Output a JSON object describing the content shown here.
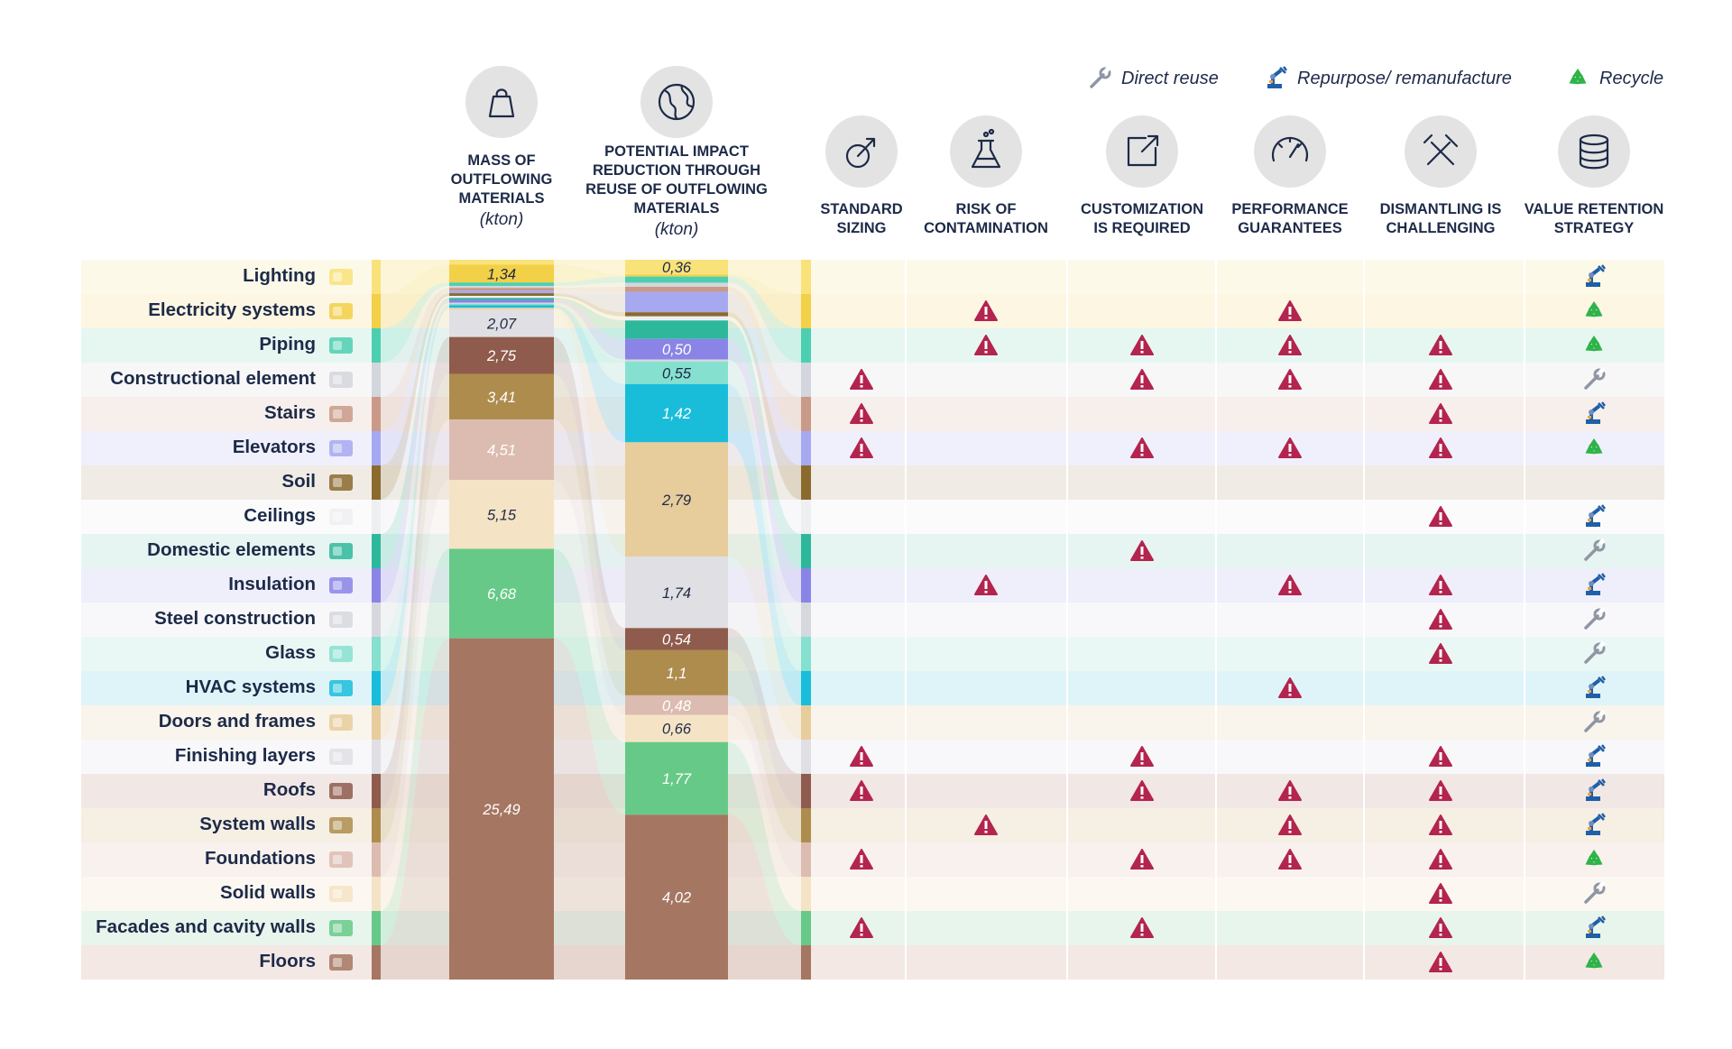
{
  "legend": [
    {
      "icon": "wrench-icon",
      "label": "Direct reuse"
    },
    {
      "icon": "robot-arm-icon",
      "label": "Repurpose/ remanufacture"
    },
    {
      "icon": "recycle-icon",
      "label": "Recycle"
    }
  ],
  "columns": {
    "mass": {
      "title_lines": [
        "MASS OF",
        "OUTFLOWING",
        "MATERIALS"
      ],
      "unit": "(kton)",
      "icon": "weight-icon"
    },
    "impact": {
      "title_lines": [
        "POTENTIAL IMPACT",
        "REDUCTION THROUGH",
        "REUSE OF OUTFLOWING",
        "MATERIALS"
      ],
      "unit": "(kton)",
      "icon": "globe-icon"
    },
    "criteria": [
      {
        "key": "standard_sizing",
        "title_lines": [
          "STANDARD",
          "SIZING"
        ],
        "icon": "resize-icon"
      },
      {
        "key": "risk_of_contamination",
        "title_lines": [
          "RISK OF",
          "CONTAMINATION"
        ],
        "icon": "flask-icon"
      },
      {
        "key": "customization_required",
        "title_lines": [
          "CUSTOMIZATION",
          "IS REQUIRED"
        ],
        "icon": "external-link-icon"
      },
      {
        "key": "performance_guarantees",
        "title_lines": [
          "PERFORMANCE",
          "GUARANTEES"
        ],
        "icon": "gauge-icon"
      },
      {
        "key": "dismantling_challenging",
        "title_lines": [
          "DISMANTLING IS",
          "CHALLENGING"
        ],
        "icon": "tools-icon"
      },
      {
        "key": "value_retention_strategy",
        "title_lines": [
          "VALUE RETENTION",
          "STRATEGY"
        ],
        "icon": "database-icon"
      }
    ]
  },
  "colors": {
    "warning": "#b3244e",
    "strategy_blue": "#1f5fa8",
    "recycle_green": "#2fb34a",
    "wrench_gray": "#8e96a3"
  },
  "chart_data": {
    "type": "table",
    "rows": [
      {
        "name": "Lighting",
        "icon": "lightbulb-icon",
        "color": "#f9e27a",
        "tint": "#fdf9e9",
        "mass": 0.36,
        "mass_label": "",
        "impact": 0.36,
        "impact_label": "0,36",
        "flags": [
          0,
          0,
          0,
          0,
          0
        ],
        "strategy": "repurpose"
      },
      {
        "name": "Electricity systems",
        "icon": "electric-box-icon",
        "color": "#f2d047",
        "tint": "#fdf6e3",
        "mass": 1.34,
        "mass_label": "1,34",
        "impact": 0.05,
        "impact_label": "",
        "flags": [
          0,
          1,
          0,
          1,
          0
        ],
        "strategy": "recycle"
      },
      {
        "name": "Piping",
        "icon": "pipe-icon",
        "color": "#4ccfb0",
        "tint": "#e6f7f2",
        "mass": 0.25,
        "mass_label": "",
        "impact": 0.15,
        "impact_label": "",
        "flags": [
          0,
          1,
          1,
          1,
          1
        ],
        "strategy": "recycle"
      },
      {
        "name": "Constructional element",
        "icon": "beams-icon",
        "color": "#d3d6dc",
        "tint": "#f7f7f8",
        "mass": 0.15,
        "mass_label": "",
        "impact": 0.1,
        "impact_label": "",
        "flags": [
          1,
          0,
          1,
          1,
          1
        ],
        "strategy": "reuse"
      },
      {
        "name": "Stairs",
        "icon": "stairs-icon",
        "color": "#c99a88",
        "tint": "#f7efec",
        "mass": 0.2,
        "mass_label": "",
        "impact": 0.12,
        "impact_label": "",
        "flags": [
          1,
          0,
          0,
          0,
          1
        ],
        "strategy": "repurpose"
      },
      {
        "name": "Elevators",
        "icon": "elevator-icon",
        "color": "#a6a9ef",
        "tint": "#f0f0fc",
        "mass": 0.2,
        "mass_label": "",
        "impact": 0.5,
        "impact_label": "",
        "flags": [
          1,
          0,
          1,
          1,
          1
        ],
        "strategy": "recycle"
      },
      {
        "name": "Soil",
        "icon": "soil-icon",
        "color": "#8b6a2e",
        "tint": "#f0ebe4",
        "mass": 0.2,
        "mass_label": "",
        "impact": 0.1,
        "impact_label": "",
        "flags": [
          0,
          0,
          0,
          0,
          0
        ],
        "strategy": ""
      },
      {
        "name": "Ceilings",
        "icon": "ceiling-icon",
        "color": "#eeeff1",
        "tint": "#fbfbfc",
        "mass": 0.15,
        "mass_label": "",
        "impact": 0.1,
        "impact_label": "",
        "flags": [
          0,
          0,
          0,
          0,
          1
        ],
        "strategy": "repurpose"
      },
      {
        "name": "Domestic elements",
        "icon": "toilet-icon",
        "color": "#2db89c",
        "tint": "#e6f5f2",
        "mass": 0.15,
        "mass_label": "",
        "impact": 0.45,
        "impact_label": "",
        "flags": [
          0,
          0,
          1,
          0,
          0
        ],
        "strategy": "reuse"
      },
      {
        "name": "Insulation",
        "icon": "insulation-icon",
        "color": "#8a84e6",
        "tint": "#efeefb",
        "mass": 0.2,
        "mass_label": "",
        "impact": 0.5,
        "impact_label": "0,50",
        "flags": [
          0,
          1,
          0,
          1,
          1
        ],
        "strategy": "repurpose"
      },
      {
        "name": "Steel construction",
        "icon": "steel-beam-icon",
        "color": "#d6d8de",
        "tint": "#f8f8fa",
        "mass": 0.1,
        "mass_label": "",
        "impact": 0.05,
        "impact_label": "",
        "flags": [
          0,
          0,
          0,
          0,
          1
        ],
        "strategy": "reuse"
      },
      {
        "name": "Glass",
        "icon": "glass-icon",
        "color": "#86e0cf",
        "tint": "#eaf8f5",
        "mass": 0.1,
        "mass_label": "",
        "impact": 0.55,
        "impact_label": "0,55",
        "flags": [
          0,
          0,
          0,
          0,
          1
        ],
        "strategy": "reuse"
      },
      {
        "name": "HVAC systems",
        "icon": "hvac-icon",
        "color": "#19bdd9",
        "tint": "#dff4f9",
        "mass": 0.18,
        "mass_label": "",
        "impact": 1.42,
        "impact_label": "1,42",
        "flags": [
          0,
          0,
          0,
          1,
          0
        ],
        "strategy": "repurpose"
      },
      {
        "name": "Doors and frames",
        "icon": "door-icon",
        "color": "#e7cc9c",
        "tint": "#f9f4ec",
        "mass": 0.12,
        "mass_label": "",
        "impact": 2.79,
        "impact_label": "2,79",
        "flags": [
          0,
          0,
          0,
          0,
          0
        ],
        "strategy": "reuse"
      },
      {
        "name": "Finishing layers",
        "icon": "finishing-icon",
        "color": "#e0dfe4",
        "tint": "#f8f8fa",
        "mass": 2.07,
        "mass_label": "2,07",
        "impact": 1.74,
        "impact_label": "1,74",
        "flags": [
          1,
          0,
          1,
          0,
          1
        ],
        "strategy": "repurpose"
      },
      {
        "name": "Roofs",
        "icon": "roof-icon",
        "color": "#8f5b4c",
        "tint": "#f1e7e4",
        "mass": 2.75,
        "mass_label": "2,75",
        "impact": 0.54,
        "impact_label": "0,54",
        "flags": [
          1,
          0,
          1,
          1,
          1
        ],
        "strategy": "repurpose"
      },
      {
        "name": "System walls",
        "icon": "system-wall-icon",
        "color": "#ae8c4d",
        "tint": "#f5efe4",
        "mass": 3.41,
        "mass_label": "3,41",
        "impact": 1.1,
        "impact_label": "1,1",
        "flags": [
          0,
          1,
          0,
          1,
          1
        ],
        "strategy": "repurpose"
      },
      {
        "name": "Foundations",
        "icon": "foundation-icon",
        "color": "#dcbcb0",
        "tint": "#f8f1ee",
        "mass": 4.51,
        "mass_label": "4,51",
        "impact": 0.48,
        "impact_label": "0,48",
        "flags": [
          1,
          0,
          1,
          1,
          1
        ],
        "strategy": "recycle"
      },
      {
        "name": "Solid walls",
        "icon": "solid-wall-icon",
        "color": "#f5e3c5",
        "tint": "#fcf8f1",
        "mass": 5.15,
        "mass_label": "5,15",
        "impact": 0.66,
        "impact_label": "0,66",
        "flags": [
          0,
          0,
          0,
          0,
          1
        ],
        "strategy": "reuse"
      },
      {
        "name": "Facades and cavity walls",
        "icon": "facade-icon",
        "color": "#66c987",
        "tint": "#e8f5ec",
        "mass": 6.68,
        "mass_label": "6,68",
        "impact": 1.77,
        "impact_label": "1,77",
        "flags": [
          1,
          0,
          1,
          0,
          1
        ],
        "strategy": "repurpose"
      },
      {
        "name": "Floors",
        "icon": "floor-icon",
        "color": "#a57662",
        "tint": "#f3e8e4",
        "mass": 25.49,
        "mass_label": "25,49",
        "impact": 4.02,
        "impact_label": "4,02",
        "flags": [
          0,
          0,
          0,
          0,
          1
        ],
        "strategy": "recycle"
      }
    ]
  }
}
